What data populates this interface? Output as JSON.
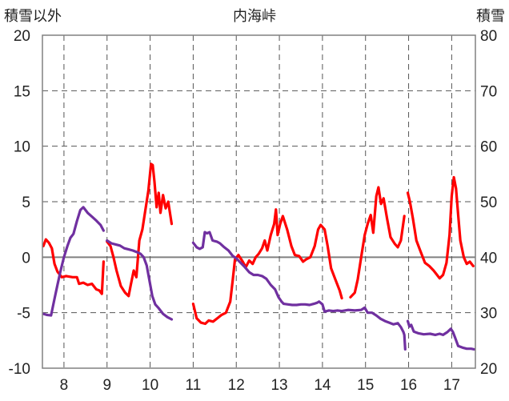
{
  "chart_data": {
    "type": "line",
    "title": "内海峠",
    "y_left_label": "積雪以外",
    "y_right_label": "積雪",
    "left_ylim": [
      -10,
      20
    ],
    "right_ylim": [
      20,
      80
    ],
    "left_ticks": [
      -10,
      -5,
      0,
      5,
      10,
      15,
      20
    ],
    "right_ticks": [
      20,
      30,
      40,
      50,
      60,
      70,
      80
    ],
    "xlim": [
      7.5,
      17.55
    ],
    "x_ticks": [
      8,
      9,
      10,
      11,
      12,
      13,
      14,
      15,
      16,
      17
    ],
    "grid": true,
    "colors": {
      "temperature": "#ff0000",
      "snow": "#7030a0",
      "zero_line": "#808080"
    },
    "series": [
      {
        "axis": "left",
        "color": "#ff0000",
        "segments": [
          [
            [
              7.52,
              1.0
            ],
            [
              7.58,
              1.6
            ],
            [
              7.65,
              1.3
            ],
            [
              7.72,
              0.8
            ],
            [
              7.78,
              -0.6
            ],
            [
              7.85,
              -1.3
            ],
            [
              7.95,
              -1.8
            ],
            [
              8.05,
              -1.7
            ],
            [
              8.2,
              -1.8
            ],
            [
              8.3,
              -1.8
            ],
            [
              8.35,
              -2.4
            ],
            [
              8.45,
              -2.3
            ],
            [
              8.55,
              -2.5
            ],
            [
              8.65,
              -2.4
            ],
            [
              8.75,
              -2.9
            ],
            [
              8.82,
              -3.0
            ],
            [
              8.88,
              -3.3
            ],
            [
              8.92,
              -0.4
            ]
          ],
          [
            [
              9.0,
              1.4
            ],
            [
              9.08,
              1.0
            ],
            [
              9.15,
              0.0
            ],
            [
              9.22,
              -1.2
            ],
            [
              9.32,
              -2.6
            ],
            [
              9.42,
              -3.2
            ],
            [
              9.5,
              -3.5
            ],
            [
              9.55,
              -2.5
            ],
            [
              9.62,
              -1.2
            ],
            [
              9.68,
              -1.8
            ],
            [
              9.75,
              1.5
            ],
            [
              9.82,
              2.5
            ],
            [
              9.9,
              4.5
            ],
            [
              9.96,
              6.0
            ],
            [
              10.02,
              8.4
            ],
            [
              10.06,
              8.3
            ],
            [
              10.1,
              6.8
            ],
            [
              10.15,
              4.5
            ],
            [
              10.2,
              5.8
            ],
            [
              10.24,
              4.0
            ],
            [
              10.3,
              5.6
            ],
            [
              10.36,
              4.4
            ],
            [
              10.42,
              5.0
            ],
            [
              10.5,
              3.0
            ]
          ],
          [
            [
              11.0,
              -4.2
            ],
            [
              11.08,
              -5.5
            ],
            [
              11.18,
              -5.9
            ],
            [
              11.28,
              -6.0
            ],
            [
              11.36,
              -5.7
            ],
            [
              11.46,
              -5.8
            ],
            [
              11.56,
              -5.5
            ],
            [
              11.66,
              -5.2
            ],
            [
              11.76,
              -5.0
            ],
            [
              11.86,
              -4.0
            ],
            [
              11.92,
              -2.0
            ],
            [
              11.97,
              -0.2
            ],
            [
              12.05,
              0.2
            ],
            [
              12.15,
              -0.4
            ],
            [
              12.22,
              -0.9
            ],
            [
              12.3,
              -0.3
            ],
            [
              12.38,
              -0.6
            ],
            [
              12.45,
              0.0
            ],
            [
              12.52,
              0.3
            ],
            [
              12.6,
              0.8
            ],
            [
              12.66,
              1.5
            ],
            [
              12.72,
              0.6
            ],
            [
              12.8,
              2.0
            ],
            [
              12.88,
              3.0
            ],
            [
              12.92,
              4.3
            ],
            [
              12.96,
              2.0
            ],
            [
              13.02,
              3.0
            ],
            [
              13.08,
              3.7
            ],
            [
              13.18,
              2.5
            ],
            [
              13.28,
              1.0
            ],
            [
              13.36,
              0.2
            ],
            [
              13.46,
              0.1
            ],
            [
              13.55,
              -0.4
            ],
            [
              13.62,
              -0.2
            ],
            [
              13.72,
              0.0
            ],
            [
              13.82,
              1.0
            ],
            [
              13.9,
              2.5
            ],
            [
              13.96,
              2.9
            ],
            [
              14.05,
              2.5
            ],
            [
              14.12,
              1.0
            ],
            [
              14.2,
              -1.0
            ],
            [
              14.3,
              -2.0
            ],
            [
              14.4,
              -3.0
            ],
            [
              14.45,
              -3.7
            ]
          ],
          [
            [
              14.65,
              -3.6
            ],
            [
              14.75,
              -3.2
            ],
            [
              14.82,
              -2.0
            ],
            [
              14.9,
              0.0
            ],
            [
              14.98,
              2.0
            ],
            [
              15.05,
              3.0
            ],
            [
              15.12,
              3.8
            ],
            [
              15.18,
              2.2
            ],
            [
              15.25,
              5.5
            ],
            [
              15.3,
              6.3
            ],
            [
              15.36,
              4.8
            ],
            [
              15.42,
              5.3
            ],
            [
              15.5,
              3.5
            ],
            [
              15.58,
              1.8
            ],
            [
              15.68,
              1.2
            ],
            [
              15.75,
              0.9
            ],
            [
              15.82,
              1.5
            ],
            [
              15.9,
              3.7
            ]
          ],
          [
            [
              15.98,
              5.8
            ],
            [
              16.03,
              5.0
            ],
            [
              16.1,
              3.5
            ],
            [
              16.18,
              1.5
            ],
            [
              16.28,
              0.5
            ],
            [
              16.38,
              -0.5
            ],
            [
              16.48,
              -0.8
            ],
            [
              16.58,
              -1.2
            ],
            [
              16.66,
              -1.6
            ],
            [
              16.72,
              -1.9
            ],
            [
              16.8,
              -1.6
            ],
            [
              16.88,
              -0.5
            ],
            [
              16.95,
              2.0
            ],
            [
              17.0,
              5.5
            ],
            [
              17.05,
              7.2
            ],
            [
              17.1,
              6.2
            ],
            [
              17.15,
              3.8
            ],
            [
              17.2,
              1.5
            ],
            [
              17.28,
              0.0
            ],
            [
              17.35,
              -0.6
            ],
            [
              17.42,
              -0.4
            ],
            [
              17.5,
              -0.8
            ]
          ]
        ]
      },
      {
        "axis": "right",
        "color": "#7030a0",
        "segments": [
          [
            [
              7.52,
              29.8
            ],
            [
              7.6,
              29.6
            ],
            [
              7.7,
              29.5
            ],
            [
              7.78,
              32.5
            ],
            [
              7.85,
              35.0
            ],
            [
              7.92,
              37.5
            ],
            [
              8.0,
              40.0
            ],
            [
              8.08,
              42.0
            ],
            [
              8.15,
              43.5
            ],
            [
              8.22,
              44.2
            ],
            [
              8.3,
              46.5
            ],
            [
              8.38,
              48.5
            ],
            [
              8.45,
              49.0
            ],
            [
              8.55,
              48.0
            ],
            [
              8.65,
              47.3
            ],
            [
              8.75,
              46.6
            ],
            [
              8.85,
              45.8
            ],
            [
              8.92,
              44.8
            ]
          ],
          [
            [
              9.0,
              43.0
            ],
            [
              9.1,
              42.5
            ],
            [
              9.2,
              42.3
            ],
            [
              9.3,
              42.1
            ],
            [
              9.4,
              41.6
            ],
            [
              9.5,
              41.4
            ],
            [
              9.6,
              41.2
            ],
            [
              9.7,
              40.9
            ],
            [
              9.78,
              40.6
            ],
            [
              9.85,
              40.0
            ],
            [
              9.92,
              38.5
            ],
            [
              9.98,
              36.0
            ],
            [
              10.05,
              33.0
            ],
            [
              10.12,
              31.5
            ],
            [
              10.2,
              30.8
            ],
            [
              10.3,
              29.8
            ],
            [
              10.4,
              29.2
            ],
            [
              10.5,
              28.8
            ]
          ],
          [
            [
              11.0,
              42.6
            ],
            [
              11.08,
              41.8
            ],
            [
              11.15,
              41.5
            ],
            [
              11.22,
              41.8
            ],
            [
              11.27,
              44.5
            ],
            [
              11.32,
              44.3
            ],
            [
              11.38,
              44.5
            ],
            [
              11.45,
              43.0
            ],
            [
              11.55,
              42.8
            ],
            [
              11.62,
              42.5
            ],
            [
              11.72,
              41.8
            ],
            [
              11.82,
              41.2
            ],
            [
              11.92,
              40.2
            ],
            [
              12.0,
              39.8
            ],
            [
              12.1,
              39.0
            ],
            [
              12.2,
              38.2
            ],
            [
              12.3,
              37.3
            ],
            [
              12.4,
              36.8
            ],
            [
              12.5,
              36.8
            ],
            [
              12.6,
              36.6
            ],
            [
              12.7,
              36.1
            ],
            [
              12.8,
              35.0
            ],
            [
              12.9,
              34.2
            ],
            [
              12.98,
              32.8
            ],
            [
              13.05,
              32.0
            ],
            [
              13.1,
              31.6
            ],
            [
              13.2,
              31.5
            ],
            [
              13.3,
              31.4
            ],
            [
              13.4,
              31.4
            ],
            [
              13.5,
              31.5
            ],
            [
              13.6,
              31.5
            ],
            [
              13.7,
              31.4
            ],
            [
              13.8,
              31.6
            ],
            [
              13.88,
              31.8
            ],
            [
              13.92,
              32.0
            ],
            [
              14.0,
              31.5
            ],
            [
              14.05,
              30.2
            ],
            [
              14.15,
              30.4
            ],
            [
              14.25,
              30.3
            ],
            [
              14.35,
              30.4
            ],
            [
              14.45,
              30.3
            ],
            [
              14.6,
              30.5
            ],
            [
              14.75,
              30.4
            ],
            [
              14.9,
              30.5
            ],
            [
              14.98,
              30.9
            ],
            [
              15.05,
              30.0
            ],
            [
              15.15,
              30.0
            ],
            [
              15.25,
              29.5
            ],
            [
              15.35,
              28.9
            ],
            [
              15.45,
              28.5
            ],
            [
              15.55,
              28.2
            ],
            [
              15.65,
              27.9
            ],
            [
              15.75,
              28.1
            ],
            [
              15.82,
              27.4
            ],
            [
              15.88,
              26.5
            ],
            [
              15.9,
              26.0
            ],
            [
              15.92,
              23.4
            ]
          ],
          [
            [
              15.98,
              28.5
            ],
            [
              16.02,
              27.5
            ],
            [
              16.06,
              27.8
            ],
            [
              16.12,
              26.6
            ],
            [
              16.22,
              26.3
            ],
            [
              16.35,
              26.1
            ],
            [
              16.5,
              26.2
            ],
            [
              16.62,
              26.0
            ],
            [
              16.72,
              26.2
            ],
            [
              16.8,
              26.0
            ],
            [
              16.9,
              26.5
            ],
            [
              16.98,
              27.1
            ],
            [
              17.03,
              26.5
            ],
            [
              17.08,
              25.5
            ],
            [
              17.15,
              24.0
            ],
            [
              17.25,
              23.7
            ],
            [
              17.35,
              23.5
            ],
            [
              17.45,
              23.5
            ],
            [
              17.52,
              23.4
            ]
          ]
        ]
      }
    ]
  }
}
